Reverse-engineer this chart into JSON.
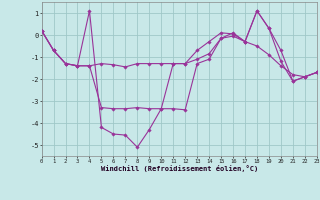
{
  "xlabel": "Windchill (Refroidissement éolien,°C)",
  "background_color": "#c8e8e8",
  "grid_color": "#a0c8c8",
  "line_color": "#993399",
  "series1": [
    0.2,
    -0.7,
    -1.3,
    -1.4,
    1.1,
    -4.2,
    -4.5,
    -4.55,
    -5.1,
    -4.3,
    -3.35,
    -3.35,
    -3.4,
    -1.3,
    -1.1,
    -0.15,
    0.1,
    -0.3,
    1.1,
    0.3,
    -1.2,
    -2.1,
    -1.9,
    -1.7
  ],
  "series2": [
    0.2,
    -0.7,
    -1.3,
    -1.4,
    -1.4,
    -1.3,
    -1.35,
    -1.45,
    -1.3,
    -1.3,
    -1.3,
    -1.3,
    -1.3,
    -1.1,
    -0.85,
    -0.15,
    -0.05,
    -0.3,
    -0.5,
    -0.9,
    -1.4,
    -1.8,
    -1.9,
    -1.7
  ],
  "series3": [
    0.2,
    -0.7,
    -1.3,
    -1.4,
    -1.4,
    -3.3,
    -3.35,
    -3.35,
    -3.3,
    -3.35,
    -3.35,
    -1.3,
    -1.3,
    -0.7,
    -0.3,
    0.1,
    0.05,
    -0.3,
    1.1,
    0.3,
    -0.7,
    -2.1,
    -1.9,
    -1.7
  ],
  "xlim": [
    0,
    23
  ],
  "ylim": [
    -5.5,
    1.5
  ],
  "yticks": [
    1,
    0,
    -1,
    -2,
    -3,
    -4,
    -5
  ],
  "xticks": [
    0,
    1,
    2,
    3,
    4,
    5,
    6,
    7,
    8,
    9,
    10,
    11,
    12,
    13,
    14,
    15,
    16,
    17,
    18,
    19,
    20,
    21,
    22,
    23
  ],
  "figsize": [
    3.2,
    2.0
  ],
  "dpi": 100
}
